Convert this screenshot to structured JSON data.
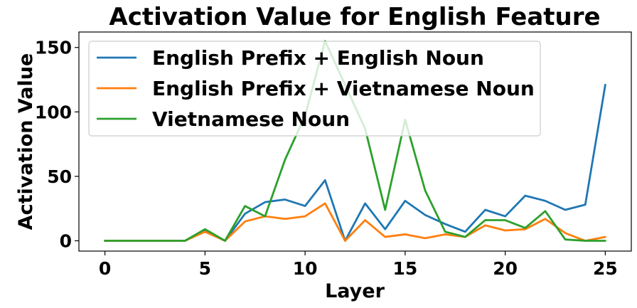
{
  "chart_data": {
    "type": "line",
    "title": "Activation Value for English Feature",
    "xlabel": "Layer",
    "ylabel": "Activation Value",
    "xlim": [
      -1.3,
      26.3
    ],
    "ylim": [
      -8,
      162
    ],
    "xticks": [
      0,
      5,
      10,
      15,
      20,
      25
    ],
    "yticks": [
      0,
      50,
      100,
      150
    ],
    "grid": false,
    "legend_position": "top-left",
    "x": [
      0,
      1,
      2,
      3,
      4,
      5,
      6,
      7,
      8,
      9,
      10,
      11,
      12,
      13,
      14,
      15,
      16,
      17,
      18,
      19,
      20,
      21,
      22,
      23,
      24,
      25
    ],
    "series": [
      {
        "name": "English Prefix + English Noun",
        "color": "#1f77b4",
        "values": [
          0,
          0,
          0,
          0,
          0,
          8,
          0,
          21,
          30,
          32,
          27,
          47,
          0,
          29,
          9,
          31,
          20,
          13,
          7,
          24,
          19,
          35,
          31,
          24,
          28,
          121
        ]
      },
      {
        "name": "English Prefix + Vietnamese Noun",
        "color": "#ff7f0e",
        "values": [
          0,
          0,
          0,
          0,
          0,
          7,
          0,
          15,
          19,
          17,
          19,
          29,
          0,
          16,
          3,
          5,
          2,
          5,
          3,
          12,
          8,
          9,
          17,
          6,
          0,
          3
        ]
      },
      {
        "name": "Vietnamese Noun",
        "color": "#2ca02c",
        "values": [
          0,
          0,
          0,
          0,
          0,
          9,
          0,
          27,
          19,
          63,
          97,
          155,
          121,
          87,
          24,
          94,
          39,
          7,
          3,
          16,
          16,
          10,
          23,
          1,
          0,
          0
        ]
      }
    ]
  }
}
